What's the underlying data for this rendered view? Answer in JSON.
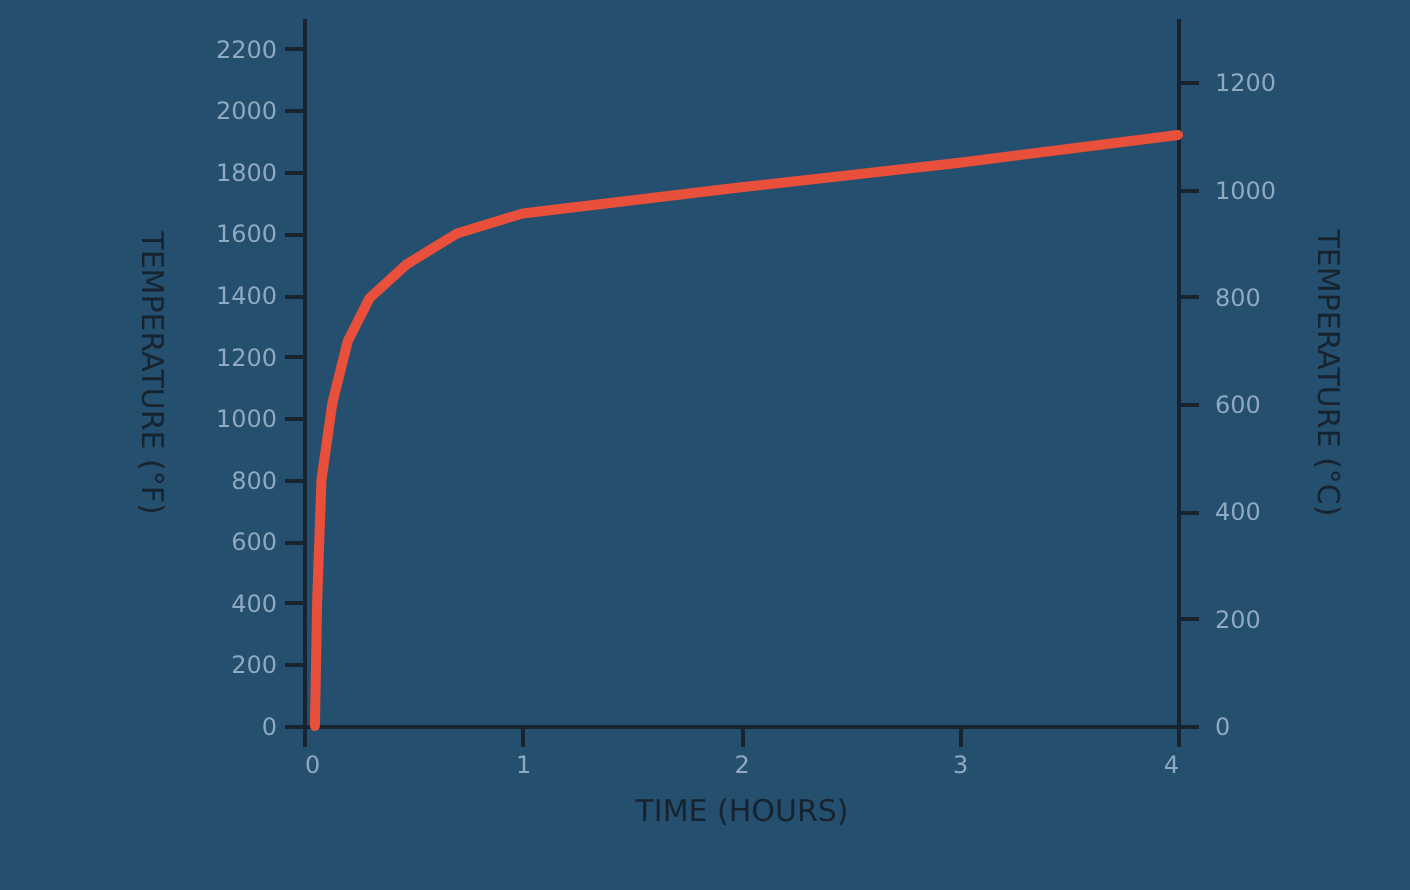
{
  "chart_data": {
    "type": "line",
    "xlabel": "TIME (HOURS)",
    "ylabel": "TEMPERATURE (°F)",
    "y2label": "TEMPERATURE (°C)",
    "series": [
      {
        "color": "#e8503c",
        "x": [
          0.05,
          0.06,
          0.08,
          0.13,
          0.2,
          0.3,
          0.47,
          0.7,
          1.0,
          2,
          3,
          4
        ],
        "values": [
          0,
          400,
          800,
          1050,
          1250,
          1390,
          1500,
          1600,
          1665,
          1750,
          1830,
          1920
        ]
      }
    ],
    "xlim": [
      0,
      4
    ],
    "xticks": [
      0,
      1,
      2,
      3,
      4
    ],
    "ylim": [
      0,
      2300
    ],
    "yticks": [
      0,
      200,
      400,
      600,
      800,
      1000,
      1200,
      1400,
      1600,
      1800,
      2000,
      2200
    ],
    "y2lim": [
      0,
      1320
    ],
    "y2ticks": [
      0,
      200,
      400,
      600,
      800,
      1000,
      1200
    ],
    "grid": false,
    "marker": "none",
    "line_style": "solid"
  }
}
